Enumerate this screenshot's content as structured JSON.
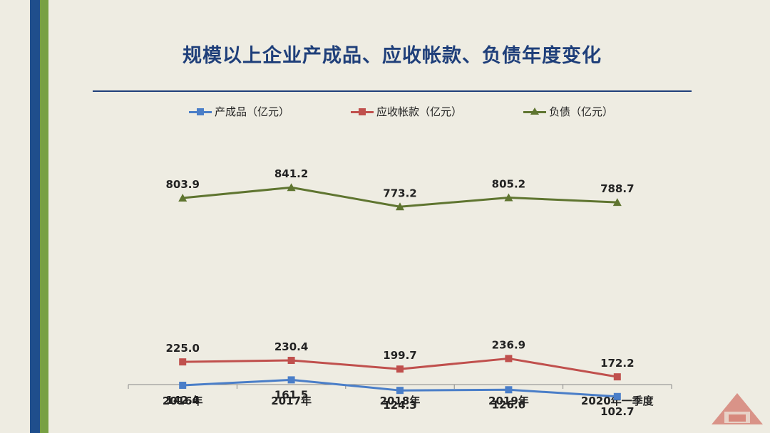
{
  "title": "规模以上企业产成品、应收帐款、负债年度变化",
  "colors": {
    "series_1": "#4a7ec8",
    "series_2": "#c0504d",
    "series_3": "#5f7530",
    "title": "#1f3f7a",
    "background": "#eeece2"
  },
  "legend": [
    {
      "label": "产成品（亿元）",
      "marker": "square",
      "color": "#4a7ec8"
    },
    {
      "label": "应收帐款（亿元）",
      "marker": "square",
      "color": "#c0504d"
    },
    {
      "label": "负债（亿元）",
      "marker": "triangle",
      "color": "#5f7530"
    }
  ],
  "chart_data": {
    "type": "line",
    "title": "规模以上企业产成品、应收帐款、负债年度变化",
    "categories": [
      "2016年",
      "2017年",
      "2018年",
      "2019年",
      "2020年一季度"
    ],
    "series": [
      {
        "name": "产成品（亿元）",
        "values": [
          142.4,
          161.5,
          124.3,
          126.6,
          102.7
        ],
        "marker": "square",
        "color": "#4a7ec8",
        "label_position": "below"
      },
      {
        "name": "应收帐款（亿元）",
        "values": [
          225.0,
          230.4,
          199.7,
          236.9,
          172.2
        ],
        "marker": "square",
        "color": "#c0504d",
        "label_position": "above"
      },
      {
        "name": "负债（亿元）",
        "values": [
          803.9,
          841.2,
          773.2,
          805.2,
          788.7
        ],
        "marker": "triangle",
        "color": "#5f7530",
        "label_position": "above"
      }
    ],
    "data_labels": {
      "产成品（亿元）": [
        "142.4",
        "161.5",
        "124.3",
        "126.6",
        "102.7"
      ],
      "应收帐款（亿元）": [
        "225.0",
        "230.4",
        "199.7",
        "236.9",
        "172.2"
      ],
      "负债（亿元）": [
        "803.9",
        "841.2",
        "773.2",
        "805.2",
        "788.7"
      ]
    },
    "xlabel": "",
    "ylabel": "",
    "ylim": [
      0,
      900
    ],
    "grid": false,
    "y_axis_visible": false,
    "legend_position": "top"
  }
}
